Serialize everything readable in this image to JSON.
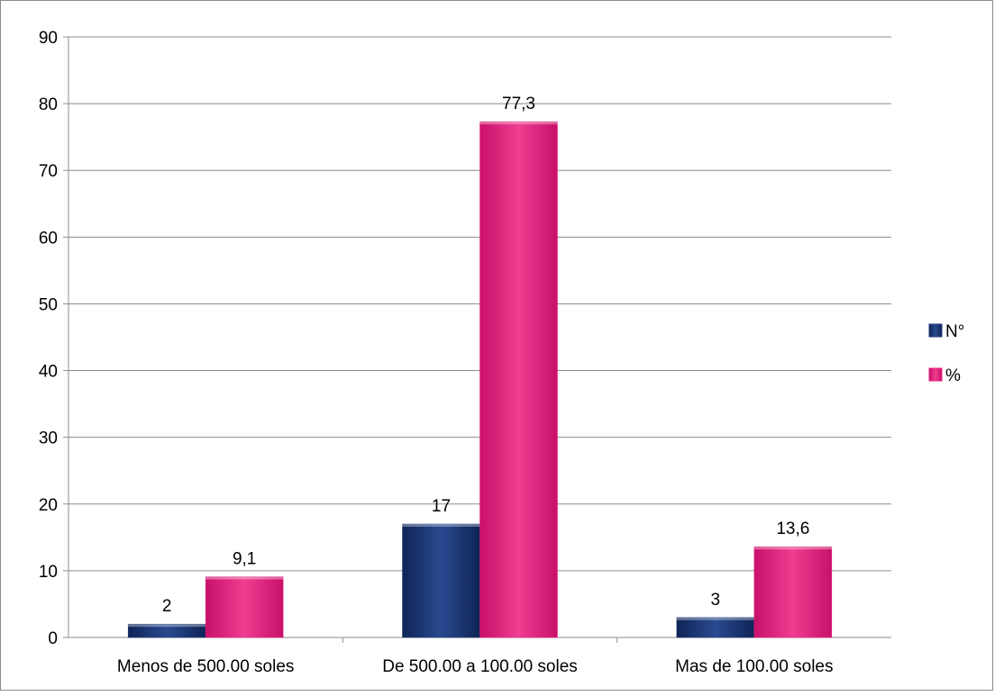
{
  "chart_data": {
    "type": "bar",
    "categories": [
      "Menos de 500.00 soles",
      "De 500.00  a 100.00 soles",
      "Mas de 100.00 soles"
    ],
    "series": [
      {
        "name": "N°",
        "values": [
          2,
          17,
          3
        ],
        "labels": [
          "2",
          "17",
          "3"
        ],
        "color": "#1f3a78"
      },
      {
        "name": "%",
        "values": [
          9.1,
          77.3,
          13.6
        ],
        "labels": [
          "9,1",
          "77,3",
          "13,6"
        ],
        "color": "#e8237f"
      }
    ],
    "ylim": [
      0,
      90
    ],
    "yticks": [
      0,
      10,
      20,
      30,
      40,
      50,
      60,
      70,
      80,
      90
    ],
    "grid": true,
    "legend_position": "right",
    "title": "",
    "xlabel": "",
    "ylabel": ""
  }
}
